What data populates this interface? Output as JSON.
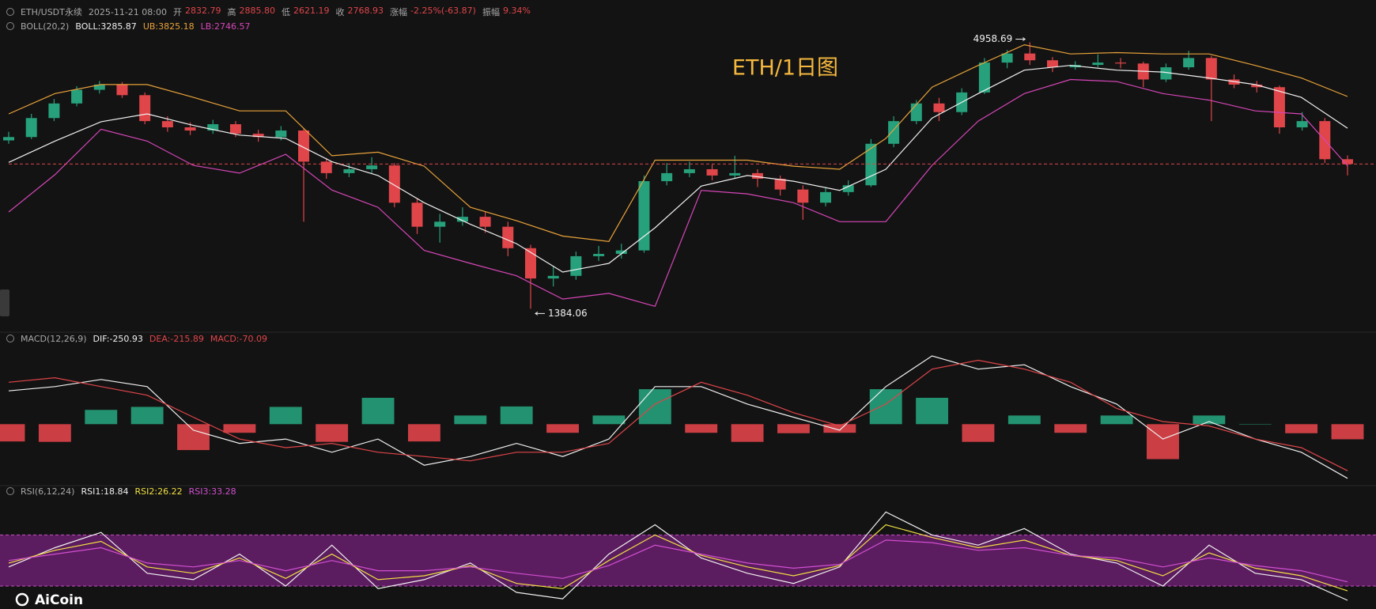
{
  "header": {
    "symbol": "ETH/USDT永续",
    "time": "2025-11-21 08:00",
    "fields": [
      {
        "label": "开",
        "value": "2832.79"
      },
      {
        "label": "高",
        "value": "2885.80"
      },
      {
        "label": "低",
        "value": "2621.19"
      },
      {
        "label": "收",
        "value": "2768.93"
      },
      {
        "label": "涨幅",
        "value": "-2.25%(-63.87)"
      },
      {
        "label": "振幅",
        "value": "9.34%"
      }
    ]
  },
  "watermark": "AiCoin",
  "chart_data": {
    "type": "candlestick",
    "title": "ETH/1日图",
    "log_scale": true,
    "ylim": [
      1280,
      5400
    ],
    "up_color": "#26a17b",
    "down_color": "#e0454a",
    "last_price_line": true,
    "candles": {
      "open": [
        3100,
        3150,
        3450,
        3700,
        3950,
        4050,
        3850,
        3400,
        3300,
        3250,
        3350,
        3200,
        3150,
        3250,
        2800,
        2650,
        2700,
        2750,
        2300,
        2050,
        2100,
        2150,
        2050,
        1850,
        1600,
        1620,
        1780,
        1800,
        1830,
        2550,
        2650,
        2700,
        2620,
        2650,
        2580,
        2450,
        2300,
        2420,
        2500,
        3050,
        3400,
        3700,
        3550,
        3900,
        4500,
        4700,
        4550,
        4400,
        4450,
        4500,
        4480,
        4150,
        4400,
        4600,
        4150,
        4050,
        4000,
        3300,
        3400,
        2832.79
      ],
      "high": [
        3230,
        3520,
        3780,
        4020,
        4120,
        4100,
        3900,
        3480,
        3380,
        3420,
        3400,
        3260,
        3320,
        3280,
        2850,
        2780,
        2860,
        2780,
        2350,
        2180,
        2250,
        2200,
        2100,
        1880,
        1700,
        1820,
        1870,
        1890,
        2620,
        2780,
        2800,
        2760,
        2880,
        2700,
        2620,
        2500,
        2480,
        2560,
        3120,
        3480,
        3760,
        3800,
        3980,
        4600,
        4780,
        4958.69,
        4620,
        4530,
        4680,
        4600,
        4520,
        4480,
        4760,
        4650,
        4250,
        4120,
        4030,
        3550,
        3450,
        2885.8
      ],
      "low": [
        3050,
        3120,
        3400,
        3650,
        3880,
        3800,
        3350,
        3230,
        3180,
        3200,
        3150,
        3080,
        3100,
        2100,
        2580,
        2600,
        2650,
        2250,
        1980,
        1900,
        2060,
        1990,
        1780,
        1384.06,
        1540,
        1590,
        1740,
        1760,
        1810,
        2500,
        2600,
        2560,
        2580,
        2480,
        2380,
        2120,
        2260,
        2380,
        2480,
        3000,
        3350,
        3400,
        3500,
        3870,
        4380,
        4450,
        4300,
        4350,
        4400,
        4380,
        4000,
        4100,
        4350,
        3400,
        3980,
        3900,
        3200,
        3250,
        2780,
        2621.19
      ],
      "close": [
        3150,
        3450,
        3700,
        3950,
        4050,
        3850,
        3400,
        3300,
        3250,
        3350,
        3200,
        3150,
        3250,
        2800,
        2650,
        2700,
        2750,
        2300,
        2050,
        2100,
        2150,
        2050,
        1850,
        1600,
        1620,
        1780,
        1800,
        1830,
        2550,
        2650,
        2700,
        2620,
        2650,
        2580,
        2450,
        2300,
        2420,
        2500,
        3050,
        3400,
        3700,
        3550,
        3900,
        4500,
        4700,
        4550,
        4400,
        4450,
        4500,
        4480,
        4150,
        4400,
        4600,
        4150,
        4050,
        4000,
        3300,
        3400,
        2832.79,
        2768.93
      ]
    },
    "overlay": {
      "name": "BOLL(20,2)",
      "series": [
        {
          "name": "BOLL:3285.87",
          "color": "#f0f0f0",
          "values": [
            2790,
            3090,
            3390,
            3520,
            3330,
            3180,
            3130,
            2800,
            2620,
            2300,
            2074,
            1890,
            1650,
            1720,
            2040,
            2490,
            2620,
            2550,
            2440,
            2700,
            3450,
            3880,
            4340,
            4440,
            4340,
            4300,
            4180,
            4050,
            3810,
            3285.87
          ]
        },
        {
          "name": "UB:3825.18",
          "color": "#e8a23a",
          "values": [
            3520,
            3880,
            4050,
            4050,
            3810,
            3570,
            3570,
            2880,
            2930,
            2740,
            2250,
            2110,
            1960,
            1910,
            2820,
            2820,
            2820,
            2740,
            2700,
            3130,
            4000,
            4440,
            4900,
            4690,
            4720,
            4690,
            4690,
            4440,
            4180,
            3825.18
          ]
        },
        {
          "name": "LB:2746.57",
          "color": "#d646b8",
          "values": [
            2200,
            2630,
            3270,
            3090,
            2750,
            2650,
            2900,
            2444,
            2250,
            1830,
            1720,
            1621,
            1450,
            1490,
            1400,
            2440,
            2400,
            2300,
            2100,
            2100,
            2750,
            3400,
            3880,
            4150,
            4110,
            3880,
            3760,
            3570,
            3520,
            2746.57
          ]
        }
      ]
    },
    "macd": {
      "name": "MACD(12,26,9)",
      "ylim": [
        -270,
        360
      ],
      "series": [
        {
          "name": "DIF:-250.93",
          "color": "#f0f0f0",
          "values": [
            154,
            174,
            207,
            174,
            -28,
            -89,
            -69,
            -130,
            -69,
            -190,
            -150,
            -89,
            -150,
            -69,
            174,
            174,
            93,
            32,
            -28,
            174,
            316,
            255,
            275,
            174,
            93,
            -69,
            12,
            -69,
            -130,
            -250.93
          ]
        },
        {
          "name": "DEA:-215.89",
          "color": "#e0454a",
          "values": [
            194,
            215,
            174,
            134,
            32,
            -69,
            -109,
            -89,
            -130,
            -150,
            -170,
            -130,
            -130,
            -89,
            93,
            194,
            134,
            53,
            -8,
            93,
            255,
            296,
            255,
            194,
            73,
            12,
            -8,
            -69,
            -109,
            -215.89
          ]
        }
      ],
      "histogram": {
        "name": "MACD:-70.09",
        "color": "#e0454a",
        "values": [
          -80,
          -82,
          66,
          80,
          -120,
          -40,
          80,
          -82,
          122,
          -80,
          40,
          82,
          -40,
          40,
          162,
          -40,
          -82,
          -42,
          -40,
          162,
          122,
          -82,
          40,
          -40,
          40,
          -162,
          40,
          0,
          -42,
          -70.09
        ]
      }
    },
    "rsi": {
      "name": "RSI(6,12,24)",
      "ylim": [
        12,
        100
      ],
      "band": [
        30,
        70
      ],
      "band_color": "#6a1f6e",
      "series": [
        {
          "name": "RSI1:18.84",
          "color": "#f0f0f0",
          "values": [
            45,
            60,
            72,
            40,
            35,
            55,
            30,
            62,
            28,
            35,
            48,
            25,
            20,
            55,
            78,
            52,
            40,
            32,
            45,
            88,
            70,
            62,
            75,
            55,
            48,
            30,
            62,
            40,
            35,
            18.84
          ]
        },
        {
          "name": "RSI2:26.22",
          "color": "#f0e040",
          "values": [
            48,
            58,
            65,
            45,
            40,
            52,
            36,
            55,
            35,
            38,
            46,
            32,
            28,
            50,
            70,
            54,
            45,
            38,
            46,
            78,
            68,
            60,
            66,
            54,
            50,
            38,
            56,
            44,
            38,
            26.22
          ]
        },
        {
          "name": "RSI3:33.28",
          "color": "#d050d0",
          "values": [
            50,
            55,
            60,
            48,
            45,
            50,
            42,
            50,
            42,
            42,
            45,
            40,
            36,
            46,
            62,
            55,
            48,
            44,
            47,
            66,
            64,
            58,
            60,
            54,
            52,
            45,
            52,
            46,
            42,
            33.28
          ]
        }
      ]
    }
  }
}
